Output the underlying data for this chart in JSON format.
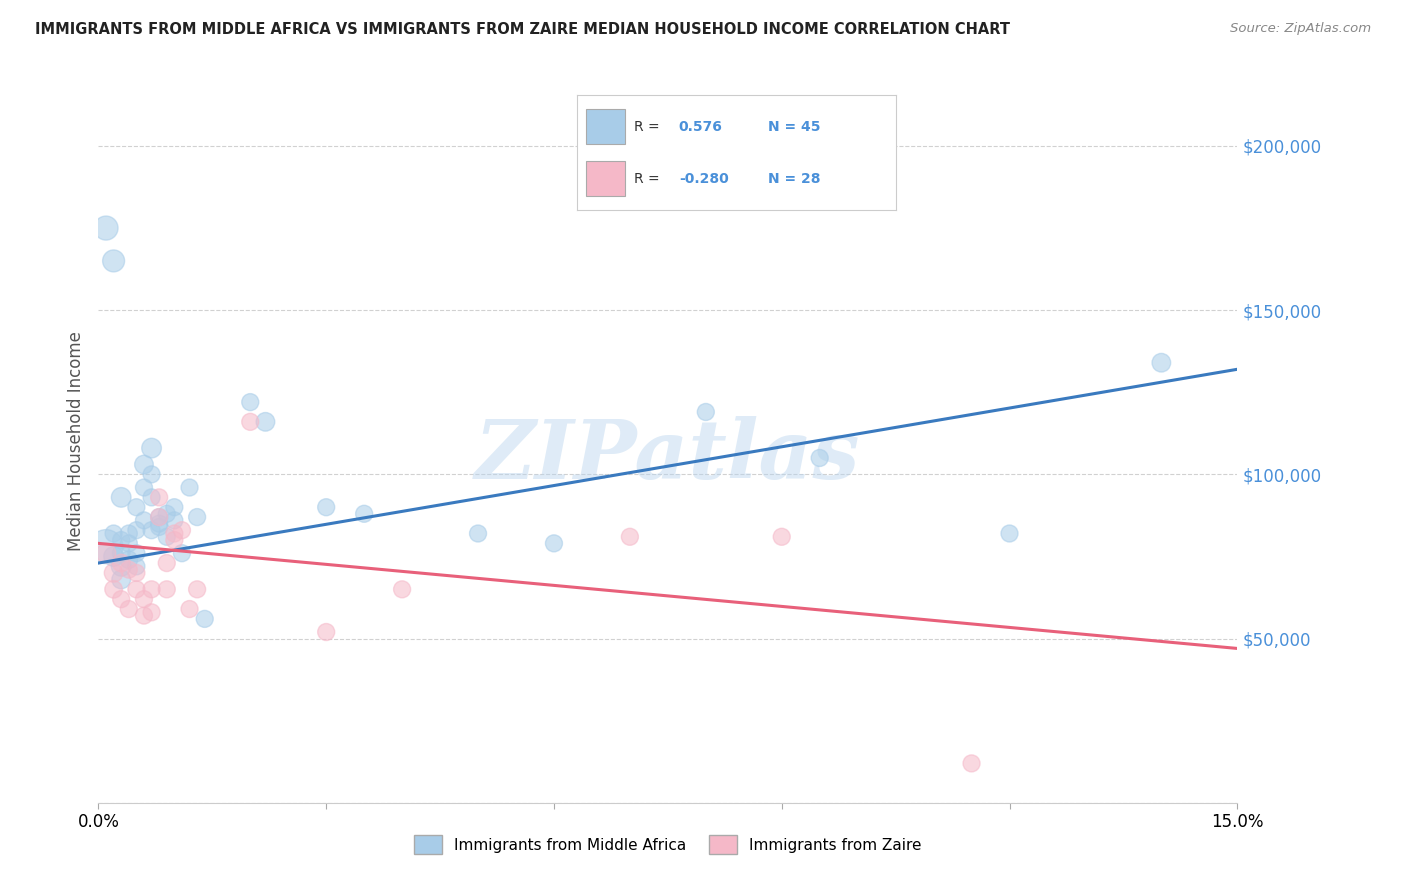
{
  "title": "IMMIGRANTS FROM MIDDLE AFRICA VS IMMIGRANTS FROM ZAIRE MEDIAN HOUSEHOLD INCOME CORRELATION CHART",
  "source": "Source: ZipAtlas.com",
  "ylabel": "Median Household Income",
  "watermark": "ZIPatlas",
  "blue_R": 0.576,
  "blue_N": 45,
  "pink_R": -0.28,
  "pink_N": 28,
  "xlim": [
    0,
    0.15
  ],
  "ylim": [
    0,
    220000
  ],
  "yticks": [
    0,
    50000,
    100000,
    150000,
    200000
  ],
  "ytick_labels": [
    "",
    "$50,000",
    "$100,000",
    "$150,000",
    "$200,000"
  ],
  "xticks": [
    0.0,
    0.03,
    0.06,
    0.09,
    0.12,
    0.15
  ],
  "xtick_labels": [
    "0.0%",
    "",
    "",
    "",
    "",
    "15.0%"
  ],
  "blue_color": "#a8cce8",
  "pink_color": "#f5b8c8",
  "blue_line_color": "#3a7abf",
  "pink_line_color": "#e8607a",
  "blue_tick_color": "#4a90d9",
  "legend_label_blue": "Immigrants from Middle Africa",
  "legend_label_pink": "Immigrants from Zaire",
  "blue_scatter_x": [
    0.001,
    0.002,
    0.002,
    0.003,
    0.003,
    0.003,
    0.003,
    0.004,
    0.004,
    0.004,
    0.005,
    0.005,
    0.005,
    0.005,
    0.006,
    0.006,
    0.007,
    0.007,
    0.007,
    0.008,
    0.008,
    0.008,
    0.009,
    0.009,
    0.01,
    0.01,
    0.011,
    0.012,
    0.013,
    0.014,
    0.02,
    0.022,
    0.03,
    0.035,
    0.05,
    0.06,
    0.08,
    0.095,
    0.12,
    0.14,
    0.001,
    0.002,
    0.003,
    0.006,
    0.007
  ],
  "blue_scatter_y": [
    78000,
    75000,
    82000,
    72000,
    68000,
    76000,
    80000,
    74000,
    79000,
    82000,
    83000,
    76000,
    72000,
    90000,
    86000,
    96000,
    93000,
    100000,
    83000,
    85000,
    84000,
    87000,
    88000,
    81000,
    90000,
    86000,
    76000,
    96000,
    87000,
    56000,
    122000,
    116000,
    90000,
    88000,
    82000,
    79000,
    119000,
    105000,
    82000,
    134000,
    175000,
    165000,
    93000,
    103000,
    108000
  ],
  "blue_scatter_sizes": [
    600,
    200,
    150,
    200,
    180,
    160,
    150,
    160,
    150,
    150,
    150,
    150,
    150,
    150,
    150,
    150,
    150,
    150,
    150,
    150,
    150,
    150,
    150,
    150,
    150,
    150,
    150,
    150,
    150,
    150,
    150,
    180,
    150,
    150,
    150,
    150,
    150,
    150,
    150,
    180,
    300,
    250,
    200,
    180,
    200
  ],
  "pink_scatter_x": [
    0.001,
    0.002,
    0.002,
    0.003,
    0.003,
    0.004,
    0.004,
    0.005,
    0.005,
    0.006,
    0.006,
    0.007,
    0.007,
    0.008,
    0.008,
    0.009,
    0.009,
    0.01,
    0.01,
    0.011,
    0.012,
    0.013,
    0.02,
    0.03,
    0.04,
    0.07,
    0.09,
    0.115
  ],
  "pink_scatter_y": [
    76000,
    70000,
    65000,
    73000,
    62000,
    71000,
    59000,
    65000,
    70000,
    62000,
    57000,
    65000,
    58000,
    93000,
    87000,
    73000,
    65000,
    82000,
    80000,
    83000,
    59000,
    65000,
    116000,
    52000,
    65000,
    81000,
    81000,
    12000
  ],
  "pink_scatter_sizes": [
    200,
    180,
    160,
    160,
    150,
    150,
    150,
    150,
    150,
    150,
    150,
    150,
    150,
    150,
    150,
    150,
    150,
    150,
    150,
    150,
    150,
    150,
    150,
    150,
    150,
    150,
    150,
    150
  ],
  "blue_trendline_x": [
    0.0,
    0.15
  ],
  "blue_trendline_y": [
    73000,
    132000
  ],
  "pink_trendline_x": [
    0.0,
    0.15
  ],
  "pink_trendline_y": [
    79000,
    47000
  ]
}
